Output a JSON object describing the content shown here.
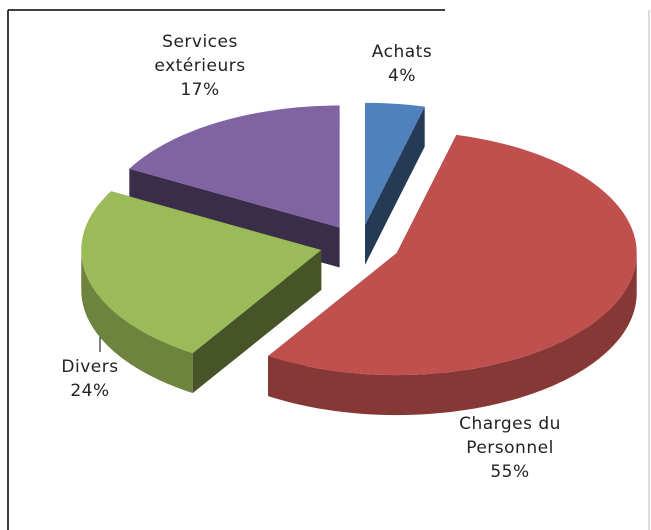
{
  "chart_data": {
    "type": "pie",
    "categories": [
      "Achats",
      "Charges du Personnel",
      "Divers",
      "Services extérieurs"
    ],
    "values": [
      4,
      55,
      24,
      17
    ],
    "value_labels": [
      "4%",
      "55%",
      "24%",
      "17%"
    ],
    "colors": [
      "#4f81bd",
      "#c0504d",
      "#9bbb59",
      "#8064a2"
    ]
  }
}
